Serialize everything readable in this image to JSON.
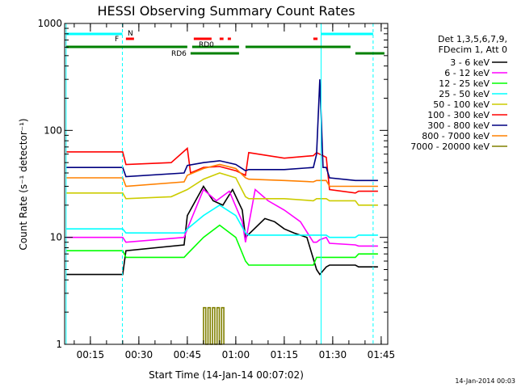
{
  "chart_data": {
    "type": "line",
    "title": "HESSI Observing Summary Count Rates",
    "xlabel": "Start Time (14-Jan-14 00:07:02)",
    "ylabel": "Count Rate (s⁻¹ detector⁻¹)",
    "y_scale": "log",
    "ylim": [
      1,
      1000
    ],
    "xlim": [
      7.03,
      107.03
    ],
    "x_unit": "minutes after 00:00 UT",
    "x_ticks": [
      {
        "value": 15,
        "label": "00:15"
      },
      {
        "value": 30,
        "label": "00:30"
      },
      {
        "value": 45,
        "label": "00:45"
      },
      {
        "value": 60,
        "label": "01:00"
      },
      {
        "value": 75,
        "label": "01:15"
      },
      {
        "value": 90,
        "label": "01:30"
      },
      {
        "value": 105,
        "label": "01:45"
      }
    ],
    "y_ticks": [
      {
        "value": 1,
        "label": "1"
      },
      {
        "value": 10,
        "label": "10"
      },
      {
        "value": 100,
        "label": "100"
      },
      {
        "value": 1000,
        "label": "1000"
      }
    ],
    "legend": {
      "position": "right",
      "header": [
        "Det 1,3,5,6,7,9,",
        "FDecim 1, Att 0"
      ]
    },
    "series": [
      {
        "name": "3 - 6 keV",
        "color": "#000000",
        "x": [
          7.5,
          25,
          26,
          44,
          45,
          50,
          53,
          56,
          59,
          62,
          63,
          69,
          72,
          75,
          78,
          82,
          85,
          86,
          88,
          89,
          97,
          98,
          104
        ],
        "y": [
          4.5,
          4.5,
          7.5,
          8.5,
          16,
          30,
          22,
          20,
          28,
          18,
          10,
          15,
          14,
          12,
          11,
          10,
          5,
          4.5,
          5.3,
          5.5,
          5.5,
          5.3,
          5.3
        ]
      },
      {
        "name": "6 - 12 keV",
        "color": "#ff00ff",
        "x": [
          7.5,
          25,
          26,
          44,
          45,
          50,
          54,
          58,
          62,
          63,
          66,
          70,
          75,
          80,
          84,
          85,
          86,
          88,
          89,
          97,
          98,
          104
        ],
        "y": [
          10,
          10,
          9,
          10,
          12,
          28,
          22,
          27,
          14,
          9,
          28,
          22,
          18,
          14,
          9,
          9,
          9.5,
          10,
          8.8,
          8.5,
          8.3,
          8.3
        ]
      },
      {
        "name": "12 - 25 keV",
        "color": "#00ff00",
        "x": [
          7.5,
          25,
          26,
          44,
          45,
          50,
          55,
          60,
          63,
          64,
          75,
          84,
          85,
          88,
          89,
          97,
          98,
          104
        ],
        "y": [
          7.5,
          7.5,
          6.5,
          6.5,
          7,
          10,
          13,
          10,
          6,
          5.5,
          5.5,
          5.5,
          6.5,
          6.5,
          6.5,
          6.5,
          7,
          7
        ]
      },
      {
        "name": "25 - 50 keV",
        "color": "#00ffff",
        "x": [
          7.5,
          25,
          26,
          44,
          45,
          50,
          55,
          60,
          63,
          64,
          75,
          84,
          85,
          88,
          89,
          97,
          98,
          104
        ],
        "y": [
          12,
          12,
          11,
          11,
          12,
          16,
          20,
          16,
          11,
          10.5,
          10.5,
          10.5,
          10.5,
          10.5,
          10,
          10,
          10.5,
          10.5
        ]
      },
      {
        "name": "50 - 100 keV",
        "color": "#cccc00",
        "x": [
          7.5,
          25,
          26,
          40,
          45,
          50,
          55,
          60,
          63,
          64,
          75,
          84,
          85,
          88,
          89,
          97,
          98,
          104
        ],
        "y": [
          26,
          26,
          23,
          24,
          28,
          35,
          40,
          36,
          24,
          23,
          23,
          22,
          23,
          23,
          22,
          22,
          20,
          20
        ]
      },
      {
        "name": "100 - 300 keV",
        "color": "#ff0000",
        "x": [
          7.5,
          25,
          26,
          40,
          45,
          46,
          50,
          55,
          60,
          63,
          64,
          75,
          84,
          85,
          88,
          89,
          97,
          98,
          104
        ],
        "y": [
          63,
          63,
          48,
          50,
          68,
          40,
          45,
          46,
          42,
          38,
          62,
          55,
          58,
          62,
          56,
          28,
          26,
          27,
          27
        ]
      },
      {
        "name": "300 - 800 keV",
        "color": "#000080",
        "x": [
          7.5,
          25,
          26,
          44,
          45,
          50,
          55,
          60,
          63,
          64,
          75,
          84,
          85,
          86,
          87,
          88,
          89,
          97,
          98,
          104
        ],
        "y": [
          45,
          45,
          37,
          40,
          47,
          50,
          52,
          48,
          42,
          43,
          43,
          45,
          60,
          300,
          45,
          45,
          36,
          34,
          34,
          34
        ]
      },
      {
        "name": "800 - 7000 keV",
        "color": "#ff8000",
        "x": [
          7.5,
          25,
          26,
          44,
          45,
          50,
          55,
          60,
          63,
          64,
          75,
          84,
          85,
          88,
          89,
          97,
          98,
          104
        ],
        "y": [
          36,
          36,
          30,
          33,
          38,
          44,
          48,
          44,
          36,
          35,
          34,
          33,
          34,
          34,
          30,
          30,
          30,
          30
        ]
      },
      {
        "name": "7000 - 20000 keV",
        "color": "#808000",
        "x": [
          50,
          50,
          50.7,
          50.7,
          51.4,
          51.4,
          52.1,
          52.1,
          52.8,
          52.8,
          53.5,
          53.5,
          54.2,
          54.2,
          54.9,
          54.9,
          55.6,
          55.6,
          56.3,
          56.3
        ],
        "y": [
          1,
          2.2,
          2.2,
          1,
          1,
          2.2,
          2.2,
          1,
          1,
          2.2,
          2.2,
          1,
          1,
          2.2,
          2.2,
          1,
          1,
          2.2,
          2.2,
          1
        ]
      }
    ],
    "vertical_lines": [
      {
        "x": 7.5,
        "style": "solid",
        "color": "#00ffff"
      },
      {
        "x": 24.9,
        "style": "dashed",
        "color": "#00ffff"
      },
      {
        "x": 86.4,
        "style": "solid",
        "color": "#00ffff"
      },
      {
        "x": 102.5,
        "style": "dashed",
        "color": "#00ffff"
      }
    ],
    "flag_bars": [
      {
        "label": "N",
        "color": "#00ffff",
        "level": 1,
        "segments": [
          [
            7.5,
            24.9
          ],
          [
            86.4,
            102.5
          ]
        ]
      },
      {
        "label": "F",
        "color": "#ff0000",
        "level": 2,
        "segments": [
          [
            26.0,
            28.5
          ],
          [
            47.0,
            52.5
          ],
          [
            55.0,
            56.2
          ],
          [
            57.5,
            58.5
          ],
          [
            84.0,
            85.3
          ]
        ]
      },
      {
        "label": "RD0",
        "color": "#008000",
        "level": 3,
        "segments": [
          [
            7.5,
            45.0
          ],
          [
            46.5,
            61.0
          ],
          [
            63.0,
            95.5
          ]
        ]
      },
      {
        "label": "RD6",
        "color": "#008000",
        "level": 4,
        "segments": [
          [
            46.0,
            61.0
          ],
          [
            97.0,
            106.0
          ]
        ]
      }
    ]
  },
  "footer": {
    "timestamp": "14-Jan-2014 00:03"
  }
}
